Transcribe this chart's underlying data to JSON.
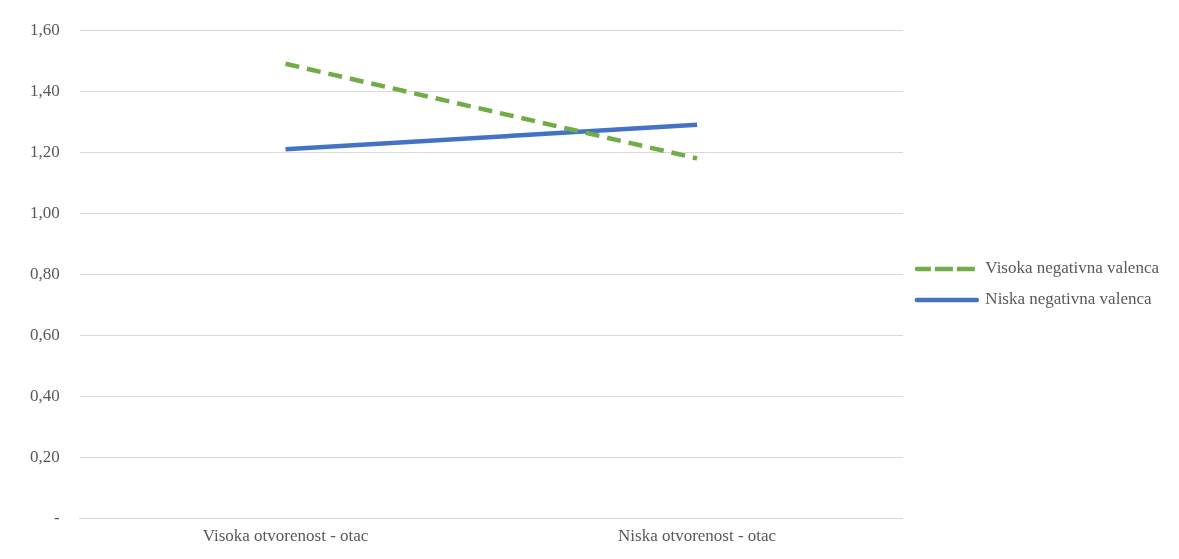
{
  "chart_data": {
    "type": "line",
    "categories": [
      "Visoka otvorenost - otac",
      "Niska otvorenost - otac"
    ],
    "series": [
      {
        "name": "Visoka negativna valenca",
        "color": "#70ad47",
        "values": [
          1.49,
          1.18
        ],
        "line_style": "dashed"
      },
      {
        "name": "Niska negativna valenca",
        "color": "#4472c4",
        "values": [
          1.21,
          1.29
        ],
        "line_style": "solid"
      }
    ],
    "ylim": [
      0,
      1.6
    ],
    "yticks": [
      {
        "value": 0,
        "label": "-"
      },
      {
        "value": 0.2,
        "label": "0,20"
      },
      {
        "value": 0.4,
        "label": "0,40"
      },
      {
        "value": 0.6,
        "label": "0,60"
      },
      {
        "value": 0.8,
        "label": "0,80"
      },
      {
        "value": 1,
        "label": "1,00"
      },
      {
        "value": 1.2,
        "label": "1,20"
      },
      {
        "value": 1.4,
        "label": "1,40"
      },
      {
        "value": 1.6,
        "label": "1,60"
      }
    ],
    "grid": "y",
    "legend": "right",
    "marker": "none"
  }
}
